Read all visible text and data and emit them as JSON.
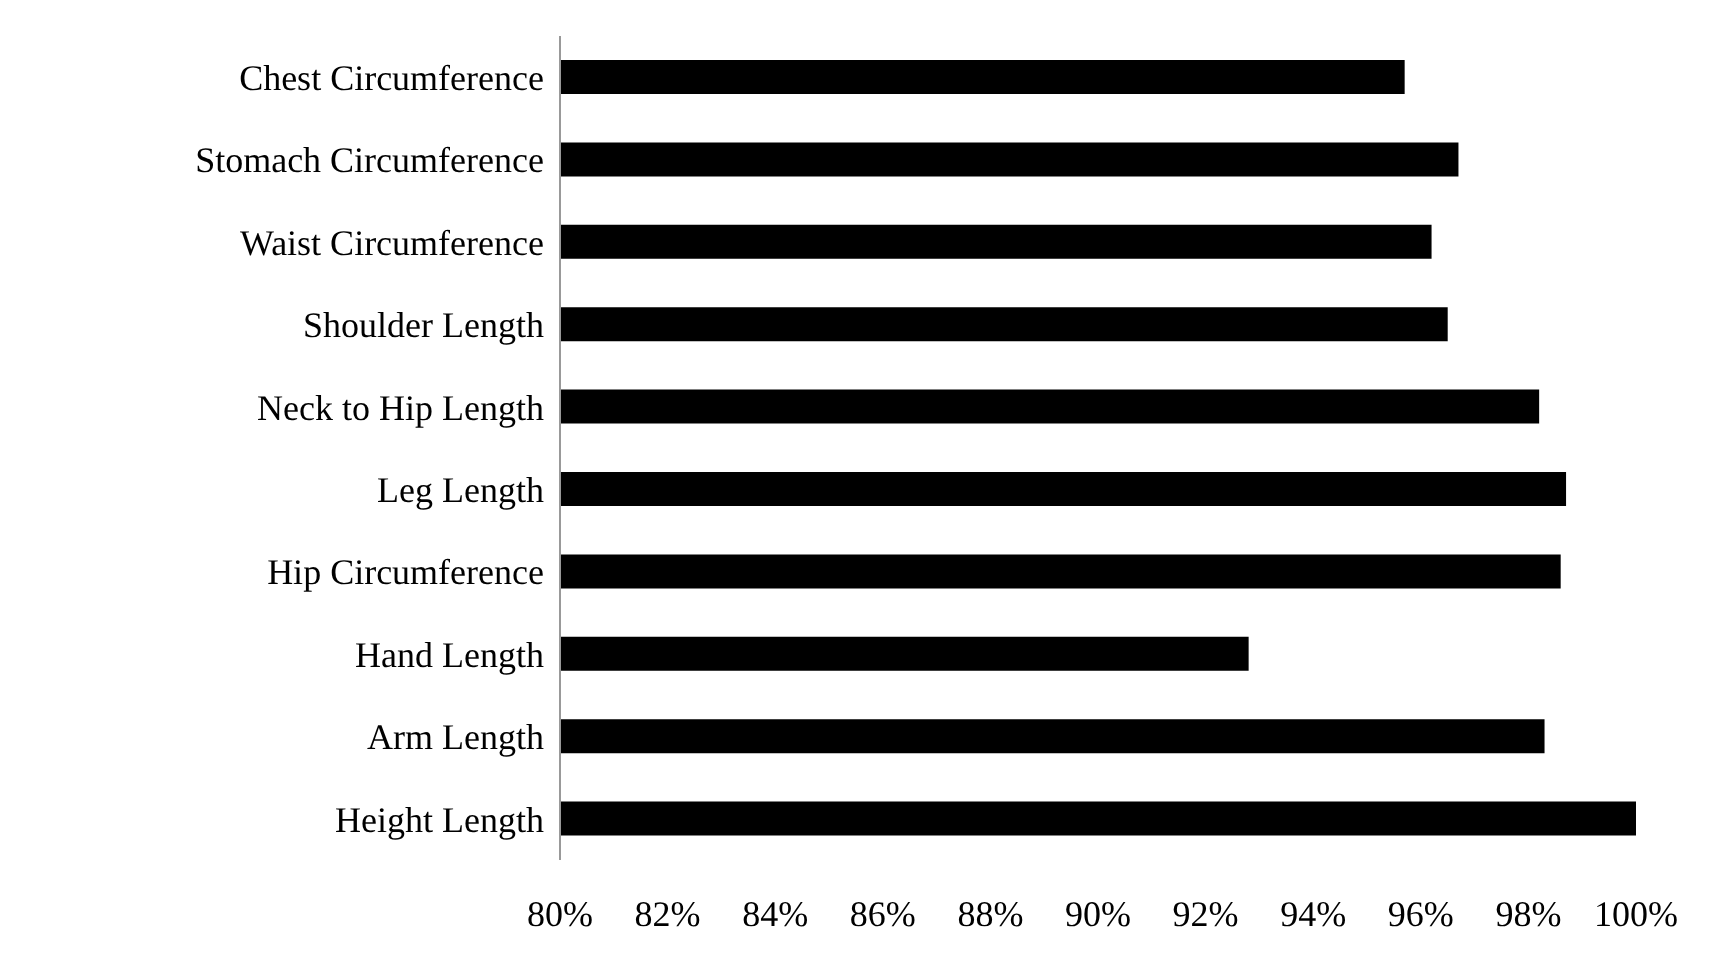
{
  "chart_data": {
    "type": "bar",
    "orientation": "horizontal",
    "categories": [
      "Chest Circumference",
      "Stomach Circumference",
      "Waist Circumference",
      "Shoulder Length",
      "Neck to Hip Length",
      "Leg Length",
      "Hip Circumference",
      "Hand Length",
      "Arm  Length",
      "Height Length"
    ],
    "values": [
      95.7,
      96.7,
      96.2,
      96.5,
      98.2,
      98.7,
      98.6,
      92.8,
      98.3,
      100
    ],
    "color": "#000000",
    "xlim": [
      80,
      100
    ],
    "xticks": [
      {
        "value": 80,
        "label": "80%"
      },
      {
        "value": 82,
        "label": "82%"
      },
      {
        "value": 84,
        "label": "84%"
      },
      {
        "value": 86,
        "label": "86%"
      },
      {
        "value": 88,
        "label": "88%"
      },
      {
        "value": 90,
        "label": "90%"
      },
      {
        "value": 92,
        "label": "92%"
      },
      {
        "value": 94,
        "label": "94%"
      },
      {
        "value": 96,
        "label": "96%"
      },
      {
        "value": 98,
        "label": "98%"
      },
      {
        "value": 100,
        "label": "100%"
      }
    ],
    "grid": false,
    "legend": false
  }
}
